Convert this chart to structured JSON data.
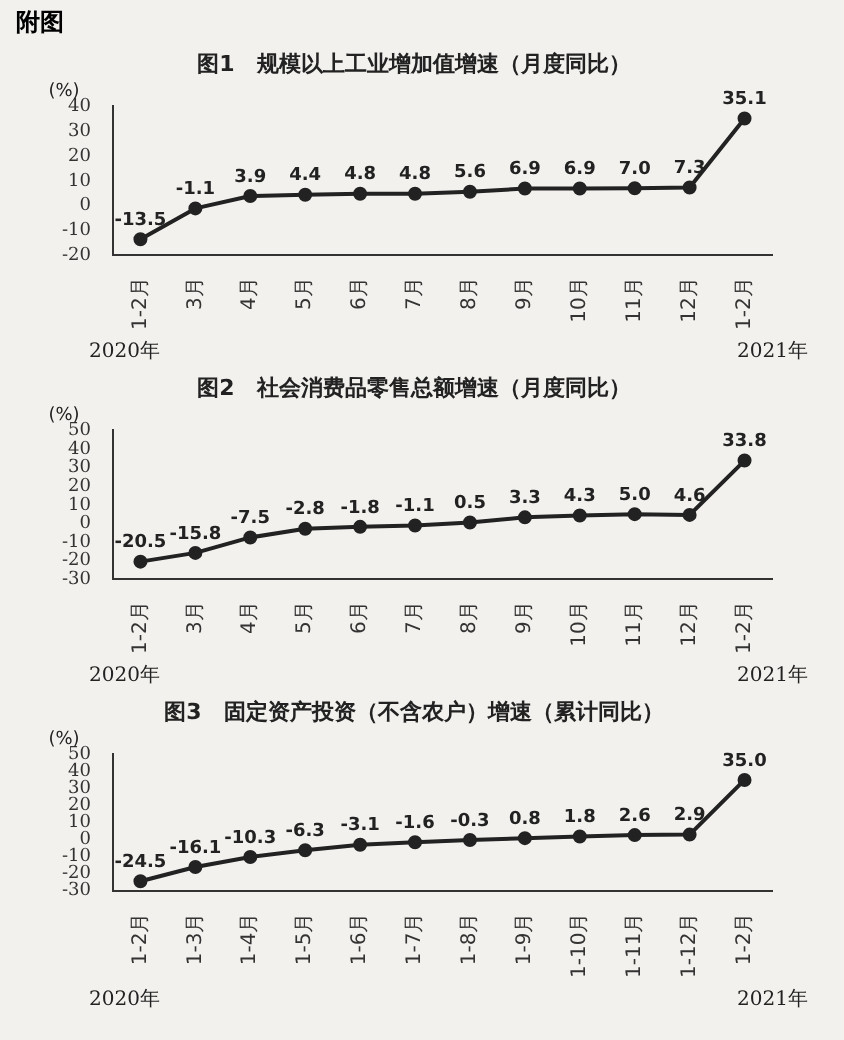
{
  "chart_data": [
    {
      "type": "line",
      "title": "图1　规模以上工业增加值增速（月度同比）",
      "ylabel": "(%)",
      "annotations": [
        "附图",
        "2020年",
        "2021年"
      ],
      "categories": [
        "1-2月",
        "3月",
        "4月",
        "5月",
        "6月",
        "7月",
        "8月",
        "9月",
        "10月",
        "11月",
        "12月",
        "1-2月"
      ],
      "series": [
        {
          "color": "#222222",
          "values": [
            -13.5,
            -1.1,
            3.9,
            4.4,
            4.8,
            4.8,
            5.6,
            6.9,
            6.9,
            7.0,
            7.3,
            35.1
          ],
          "value_labels": [
            "-13.5",
            "-1.1",
            "3.9",
            "4.4",
            "4.8",
            "4.8",
            "5.6",
            "6.9",
            "6.9",
            "7.0",
            "7.3",
            "35.1"
          ]
        }
      ],
      "ylim": [
        -20,
        40
      ],
      "yticks": [
        -20,
        -10,
        0,
        10,
        20,
        30,
        40
      ],
      "grid": false,
      "legend": false,
      "marker": "circle",
      "line_style": "solid"
    },
    {
      "type": "line",
      "title": "图2　社会消费品零售总额增速（月度同比）",
      "ylabel": "(%)",
      "annotations": [
        "2020年",
        "2021年"
      ],
      "categories": [
        "1-2月",
        "3月",
        "4月",
        "5月",
        "6月",
        "7月",
        "8月",
        "9月",
        "10月",
        "11月",
        "12月",
        "1-2月"
      ],
      "series": [
        {
          "color": "#222222",
          "values": [
            -20.5,
            -15.8,
            -7.5,
            -2.8,
            -1.8,
            -1.1,
            0.5,
            3.3,
            4.3,
            5.0,
            4.6,
            33.8
          ],
          "value_labels": [
            "-20.5",
            "-15.8",
            "-7.5",
            "-2.8",
            "-1.8",
            "-1.1",
            "0.5",
            "3.3",
            "4.3",
            "5.0",
            "4.6",
            "33.8"
          ]
        }
      ],
      "ylim": [
        -30,
        50
      ],
      "yticks": [
        -30,
        -20,
        -10,
        0,
        10,
        20,
        30,
        40,
        50
      ],
      "grid": false,
      "legend": false,
      "marker": "circle",
      "line_style": "solid"
    },
    {
      "type": "line",
      "title": "图3　固定资产投资（不含农户）增速（累计同比）",
      "ylabel": "(%)",
      "annotations": [
        "2020年",
        "2021年"
      ],
      "categories": [
        "1-2月",
        "1-3月",
        "1-4月",
        "1-5月",
        "1-6月",
        "1-7月",
        "1-8月",
        "1-9月",
        "1-10月",
        "1-11月",
        "1-12月",
        "1-2月"
      ],
      "series": [
        {
          "color": "#222222",
          "values": [
            -24.5,
            -16.1,
            -10.3,
            -6.3,
            -3.1,
            -1.6,
            -0.3,
            0.8,
            1.8,
            2.6,
            2.9,
            35.0
          ],
          "value_labels": [
            "-24.5",
            "-16.1",
            "-10.3",
            "-6.3",
            "-3.1",
            "-1.6",
            "-0.3",
            "0.8",
            "1.8",
            "2.6",
            "2.9",
            "35.0"
          ]
        }
      ],
      "ylim": [
        -30,
        50
      ],
      "yticks": [
        -30,
        -20,
        -10,
        0,
        10,
        20,
        30,
        40,
        50
      ],
      "grid": false,
      "legend": false,
      "marker": "circle",
      "line_style": "solid"
    }
  ]
}
